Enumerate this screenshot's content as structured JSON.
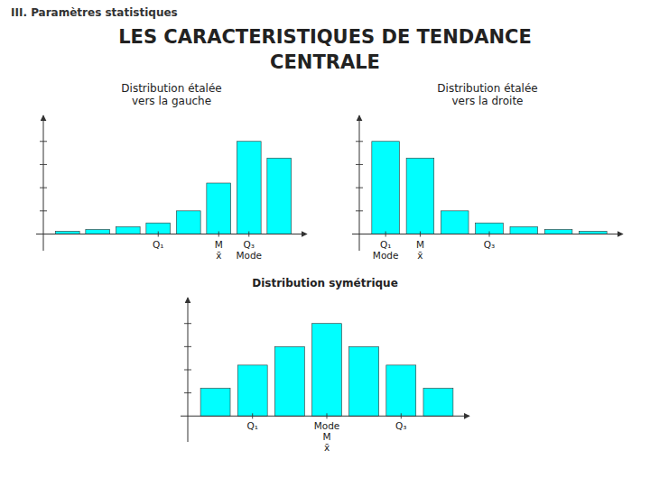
{
  "title": [
    "LES CARACTERISTIQUES DE TENDANCE",
    "CENTRALE"
  ],
  "subtitle": "III. Paramètres statistiques",
  "chart_data": [
    {
      "type": "bar",
      "title": [
        "Distribution étalée",
        "vers la gauche"
      ],
      "categories": [
        null,
        null,
        null,
        "Q₁",
        null,
        "M\nx̄",
        "Q₃\nMode",
        null
      ],
      "values": [
        0.03,
        0.05,
        0.08,
        0.12,
        0.25,
        0.55,
        1.0,
        0.82
      ],
      "color": "#00FFFF",
      "ylim": [
        -0.18,
        1.28
      ],
      "yticks": [
        0.25,
        0.5,
        0.75,
        1.0
      ],
      "tick_labels": "x"
    },
    {
      "type": "bar",
      "title": [
        "Distribution étalée",
        "vers la droite"
      ],
      "categories": [
        "Q₁\nMode",
        "M\nx̄",
        null,
        "Q₃",
        null,
        null,
        null
      ],
      "values": [
        1.0,
        0.82,
        0.25,
        0.12,
        0.08,
        0.05,
        0.03
      ],
      "color": "#00FFFF",
      "ylim": [
        -0.18,
        1.28
      ],
      "yticks": [
        0.25,
        0.5,
        0.75,
        1.0
      ],
      "tick_labels": "x"
    },
    {
      "type": "bar",
      "title": [
        "Distribution symétrique"
      ],
      "categories": [
        null,
        "Q₁",
        null,
        "Mode\nM\nx̄",
        null,
        "Q₃",
        null
      ],
      "values": [
        0.3,
        0.55,
        0.75,
        1.0,
        0.75,
        0.55,
        0.3
      ],
      "color": "#00FFFF",
      "ylim": [
        -0.28,
        1.28
      ],
      "yticks": [
        0.25,
        0.5,
        0.75,
        1.0
      ],
      "tick_labels": "x"
    }
  ]
}
